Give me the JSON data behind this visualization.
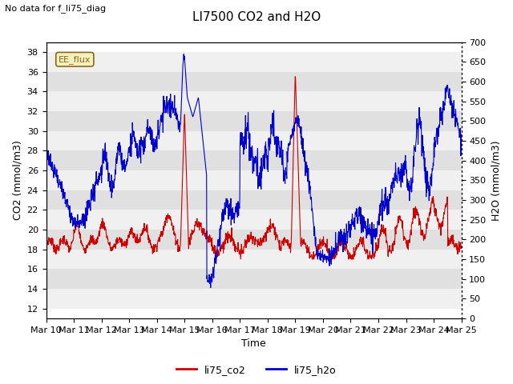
{
  "title": "LI7500 CO2 and H2O",
  "subtitle": "No data for f_li75_diag",
  "xlabel": "Time",
  "ylabel_left": "CO2 (mmol/m3)",
  "ylabel_right": "H2O (mmol/m3)",
  "ylim_left": [
    11,
    39
  ],
  "ylim_right": [
    0,
    700
  ],
  "yticks_left": [
    12,
    14,
    16,
    18,
    20,
    22,
    24,
    26,
    28,
    30,
    32,
    34,
    36,
    38
  ],
  "yticks_right": [
    0,
    50,
    100,
    150,
    200,
    250,
    300,
    350,
    400,
    450,
    500,
    550,
    600,
    650,
    700
  ],
  "xtick_labels": [
    "Mar 10",
    "Mar 11",
    "Mar 12",
    "Mar 13",
    "Mar 14",
    "Mar 15",
    "Mar 16",
    "Mar 17",
    "Mar 18",
    "Mar 19",
    "Mar 20",
    "Mar 21",
    "Mar 22",
    "Mar 23",
    "Mar 24",
    "Mar 25"
  ],
  "legend_labels": [
    "li75_co2",
    "li75_h2o"
  ],
  "annotation_text": "EE_flux",
  "co2_color": "#cc0000",
  "h2o_color": "#0000cc",
  "bg_color": "#ffffff",
  "band_color_light": "#f0f0f0",
  "band_color_dark": "#e0e0e0",
  "title_fontsize": 11,
  "axis_fontsize": 9,
  "tick_fontsize": 8,
  "subtitle_fontsize": 8
}
